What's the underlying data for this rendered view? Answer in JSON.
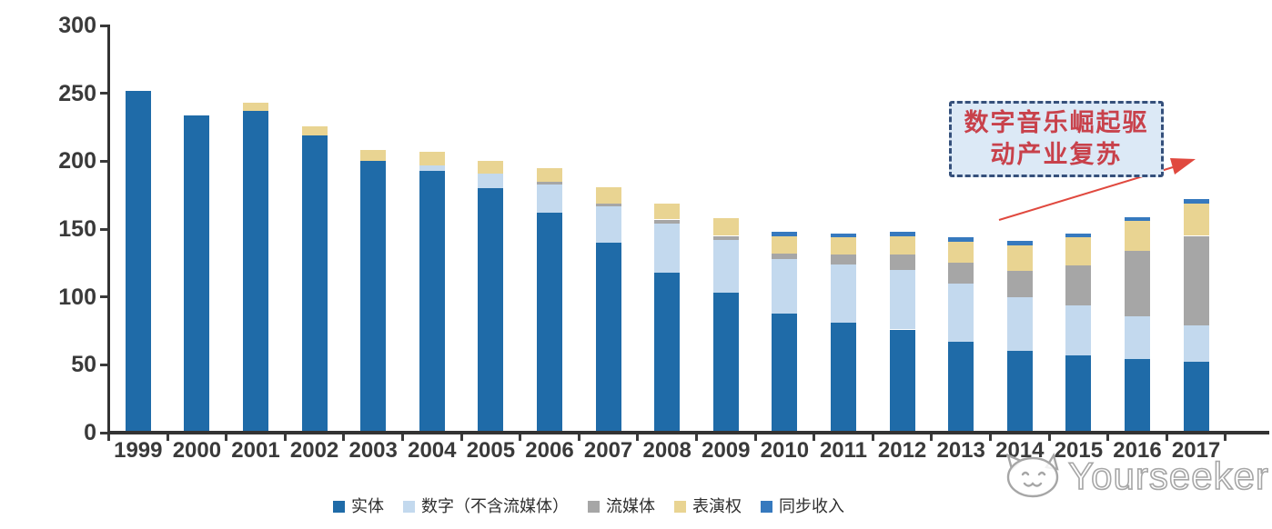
{
  "page": {
    "background": "#ffffff",
    "axis_color": "#3a3a3a"
  },
  "chart_data": {
    "type": "bar",
    "stacked": true,
    "title": "",
    "categories": [
      "1999",
      "2000",
      "2001",
      "2002",
      "2003",
      "2004",
      "2005",
      "2006",
      "2007",
      "2008",
      "2009",
      "2010",
      "2011",
      "2012",
      "2013",
      "2014",
      "2015",
      "2016",
      "2017"
    ],
    "series": [
      {
        "key": "physical",
        "name": "实体",
        "color": "#1F6BA8",
        "values": [
          252,
          234,
          237,
          219,
          200,
          193,
          180,
          162,
          140,
          118,
          103,
          88,
          81,
          76,
          67,
          60,
          57,
          54,
          52
        ]
      },
      {
        "key": "digital",
        "name": "数字（不含流媒体）",
        "color": "#C3D9EE",
        "values": [
          0,
          0,
          0,
          0,
          0,
          4,
          11,
          21,
          27,
          36,
          39,
          40,
          43,
          44,
          43,
          40,
          37,
          32,
          27
        ]
      },
      {
        "key": "streaming",
        "name": "流媒体",
        "color": "#A6A6A6",
        "values": [
          0,
          0,
          0,
          0,
          0,
          0,
          0,
          2,
          2,
          3,
          3,
          4,
          7,
          11,
          15,
          19,
          29,
          48,
          66
        ]
      },
      {
        "key": "performance",
        "name": "表演权",
        "color": "#E9D492",
        "values": [
          0,
          0,
          6,
          7,
          8,
          10,
          9,
          10,
          12,
          12,
          13,
          13,
          13,
          14,
          16,
          19,
          21,
          22,
          24
        ]
      },
      {
        "key": "sync",
        "name": "同步收入",
        "color": "#3679BE",
        "values": [
          0,
          0,
          0,
          0,
          0,
          0,
          0,
          0,
          0,
          0,
          0,
          3,
          3,
          3,
          3,
          3,
          3,
          3,
          3
        ]
      }
    ],
    "totals": [
      252,
      234,
      243,
      226,
      208,
      207,
      200,
      195,
      181,
      169,
      158,
      148,
      147,
      148,
      144,
      141,
      147,
      159,
      172
    ],
    "y_ticks": [
      0,
      50,
      100,
      150,
      200,
      250,
      300
    ],
    "ylim": [
      0,
      300
    ],
    "grid": false,
    "legend_position": "bottom"
  },
  "annotation": {
    "line1": "数字音乐崛起驱",
    "line2": "动产业复苏",
    "text_color": "#C8414B",
    "box_fill": "#DCE9F6",
    "box_border": "#35507B",
    "arrow_color": "#E0493F"
  },
  "watermark": {
    "text": "Yourseeker"
  }
}
